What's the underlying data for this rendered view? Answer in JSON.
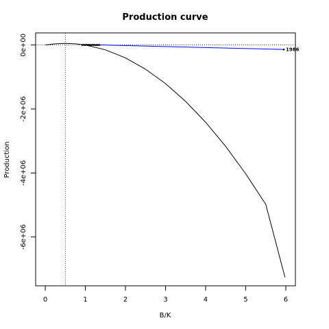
{
  "chart_data": {
    "type": "line",
    "title": "Production curve",
    "xlabel": "B/K",
    "ylabel": "Production",
    "xlim": [
      -0.24,
      6.24
    ],
    "ylim": [
      -7526000,
      378000
    ],
    "x_ticks": [
      0,
      1,
      2,
      3,
      4,
      5,
      6
    ],
    "x_tick_labels": [
      "0",
      "1",
      "2",
      "3",
      "4",
      "5",
      "6"
    ],
    "y_ticks": [
      0,
      -2000000,
      -4000000,
      -6000000
    ],
    "y_tick_labels": [
      "0e+00",
      "-2e+06",
      "-4e+06",
      "-6e+06"
    ],
    "grid": false,
    "reference_lines": {
      "vertical_x": 0.5,
      "horizontal_y": 0
    },
    "series": [
      {
        "color": "#000000",
        "kind": "curve",
        "x": [
          0,
          0.25,
          0.5,
          0.75,
          1,
          1.5,
          2,
          2.5,
          3,
          3.5,
          4,
          4.5,
          5,
          5.5,
          5.98
        ],
        "y": [
          0,
          37700,
          50300,
          37700,
          0,
          -151000,
          -402000,
          -755000,
          -1207000,
          -1761000,
          -2414000,
          -3169000,
          -4024000,
          -4980000,
          -7260000
        ]
      },
      {
        "color": "#0000ff",
        "kind": "trajectory",
        "x": [
          0.93,
          0.96,
          0.99,
          1.02,
          1.05,
          1.08,
          1.11,
          1.14,
          1.17,
          1.2,
          1.23,
          1.26,
          1.29,
          1.32,
          1.35,
          5.95
        ],
        "y": [
          0,
          8000,
          -5000,
          10000,
          3000,
          6000,
          2000,
          -4000,
          7000,
          1000,
          5000,
          -2000,
          4000,
          0,
          2000,
          -140000
        ]
      }
    ],
    "annotations": [
      {
        "text": "1986",
        "x": 5.95,
        "y": -140000
      }
    ]
  }
}
